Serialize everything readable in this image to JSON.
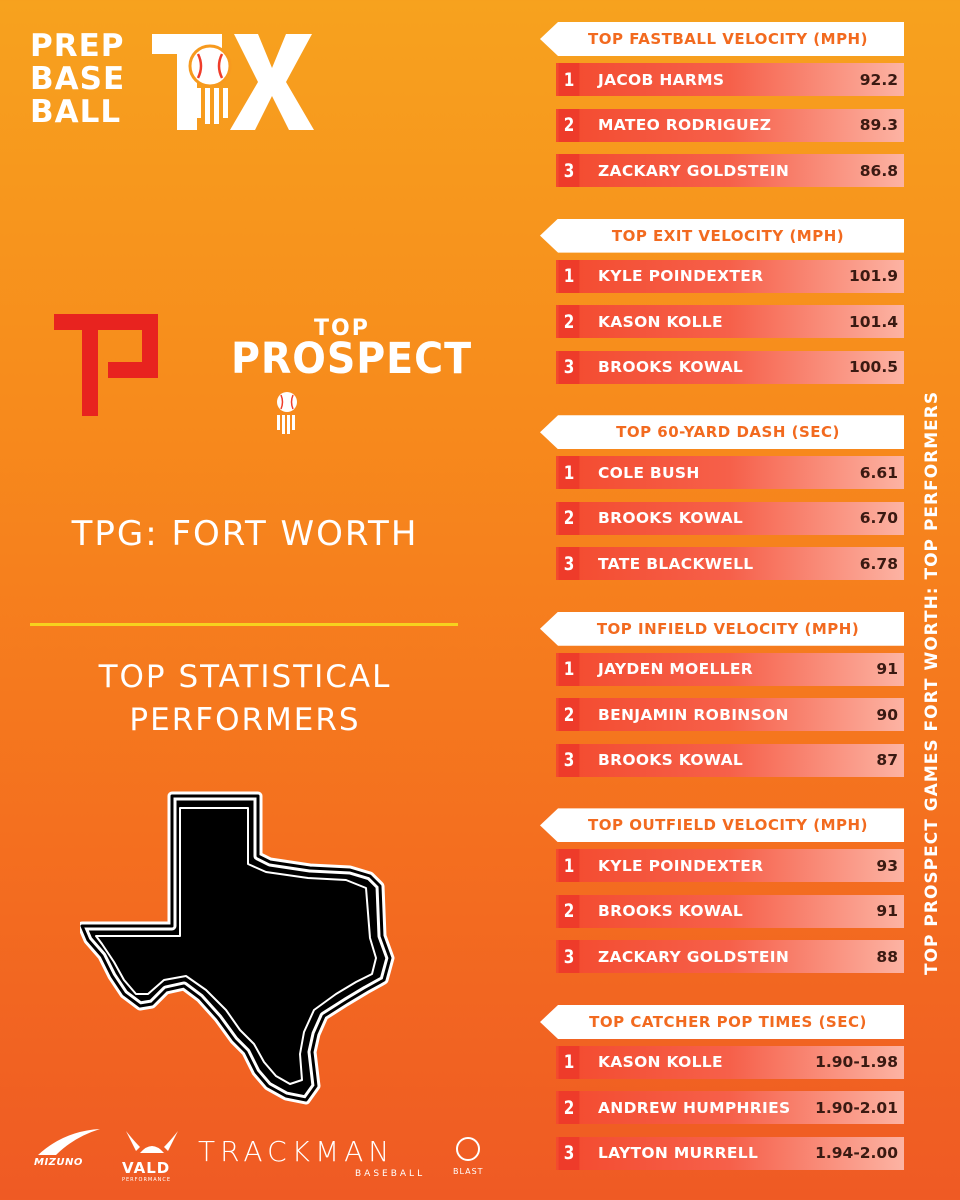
{
  "brand": {
    "pbr_lines": [
      "PREP",
      "BASE",
      "BALL"
    ],
    "state_mark": "TX"
  },
  "top_prospect": {
    "top": "TOP",
    "prospect": "PROSPECT"
  },
  "event_title": "TPG: FORT WORTH",
  "stat_title_lines": [
    "TOP STATISTICAL",
    "PERFORMERS"
  ],
  "side_banner": "TOP PROSPECT GAMES FORT WORTH: TOP PERFORMERS",
  "sponsors": {
    "mizuno": "MIZUNO",
    "vald": "VALD",
    "vald_sub": "PERFORMANCE",
    "trackman": "TRACKMAN",
    "trackman_sub": "BASEBALL",
    "blast": "BLAST"
  },
  "categories": [
    {
      "title": "TOP FASTBALL VELOCITY (MPH)",
      "rows": [
        {
          "rank": "1",
          "name": "JACOB HARMS",
          "value": "92.2"
        },
        {
          "rank": "2",
          "name": "MATEO RODRIGUEZ",
          "value": "89.3"
        },
        {
          "rank": "3",
          "name": "ZACKARY GOLDSTEIN",
          "value": "86.8"
        }
      ]
    },
    {
      "title": "TOP EXIT VELOCITY (MPH)",
      "rows": [
        {
          "rank": "1",
          "name": "KYLE POINDEXTER",
          "value": "101.9"
        },
        {
          "rank": "2",
          "name": "KASON KOLLE",
          "value": "101.4"
        },
        {
          "rank": "3",
          "name": "BROOKS KOWAL",
          "value": "100.5"
        }
      ]
    },
    {
      "title": "TOP 60-YARD DASH (SEC)",
      "rows": [
        {
          "rank": "1",
          "name": "COLE BUSH",
          "value": "6.61"
        },
        {
          "rank": "2",
          "name": "BROOKS KOWAL",
          "value": "6.70"
        },
        {
          "rank": "3",
          "name": "TATE BLACKWELL",
          "value": "6.78"
        }
      ]
    },
    {
      "title": "TOP INFIELD VELOCITY (MPH)",
      "rows": [
        {
          "rank": "1",
          "name": "JAYDEN MOELLER",
          "value": "91"
        },
        {
          "rank": "2",
          "name": "BENJAMIN ROBINSON",
          "value": "90"
        },
        {
          "rank": "3",
          "name": "BROOKS KOWAL",
          "value": "87"
        }
      ]
    },
    {
      "title": "TOP OUTFIELD VELOCITY (MPH)",
      "rows": [
        {
          "rank": "1",
          "name": "KYLE POINDEXTER",
          "value": "93"
        },
        {
          "rank": "2",
          "name": "BROOKS KOWAL",
          "value": "91"
        },
        {
          "rank": "3",
          "name": "ZACKARY GOLDSTEIN",
          "value": "88"
        }
      ]
    },
    {
      "title": "TOP CATCHER POP TIMES (SEC)",
      "rows": [
        {
          "rank": "1",
          "name": "KASON KOLLE",
          "value": "1.90-1.98"
        },
        {
          "rank": "2",
          "name": "ANDREW HUMPHRIES",
          "value": "1.90-2.01"
        },
        {
          "rank": "3",
          "name": "LAYTON MURRELL",
          "value": "1.94-2.00"
        }
      ]
    }
  ]
}
